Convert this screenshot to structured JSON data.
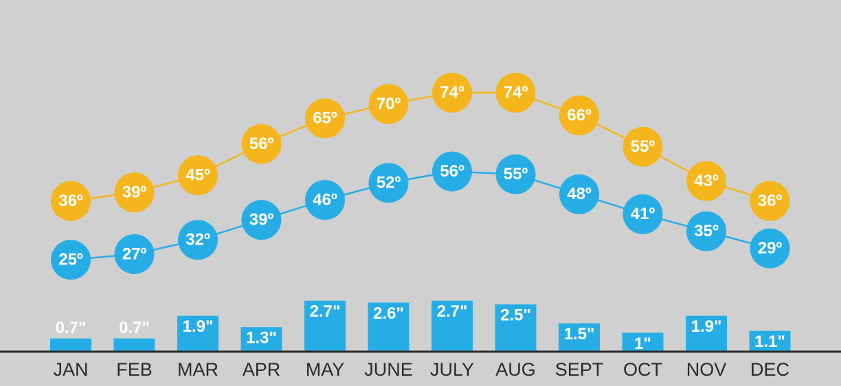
{
  "chart_data": {
    "type": "line",
    "categories": [
      "JAN",
      "FEB",
      "MAR",
      "APR",
      "MAY",
      "JUNE",
      "JULY",
      "AUG",
      "SEPT",
      "OCT",
      "NOV",
      "DEC"
    ],
    "series": [
      {
        "type": "line",
        "color": "#f5b51c",
        "values": [
          36,
          39,
          45,
          56,
          65,
          70,
          74,
          74,
          66,
          55,
          43,
          36
        ],
        "value_labels": [
          "36º",
          "39º",
          "45º",
          "56º",
          "65º",
          "70º",
          "74º",
          "74º",
          "66º",
          "55º",
          "43º",
          "36º"
        ]
      },
      {
        "type": "line",
        "color": "#27ade6",
        "values": [
          25,
          27,
          32,
          39,
          46,
          52,
          56,
          55,
          48,
          41,
          35,
          29
        ],
        "value_labels": [
          "25º",
          "27º",
          "32º",
          "39º",
          "46º",
          "52º",
          "56º",
          "55º",
          "48º",
          "41º",
          "35º",
          "29º"
        ]
      },
      {
        "type": "bar",
        "color": "#27ade6",
        "values": [
          0.7,
          0.7,
          1.9,
          1.3,
          2.7,
          2.6,
          2.7,
          2.5,
          1.5,
          1,
          1.9,
          1.1
        ],
        "value_labels": [
          "0.7\"",
          "0.7\"",
          "1.9\"",
          "1.3\"",
          "2.7\"",
          "2.6\"",
          "2.7\"",
          "2.5\"",
          "1.5\"",
          "1\"",
          "1.9\"",
          "1.1\""
        ]
      }
    ]
  }
}
